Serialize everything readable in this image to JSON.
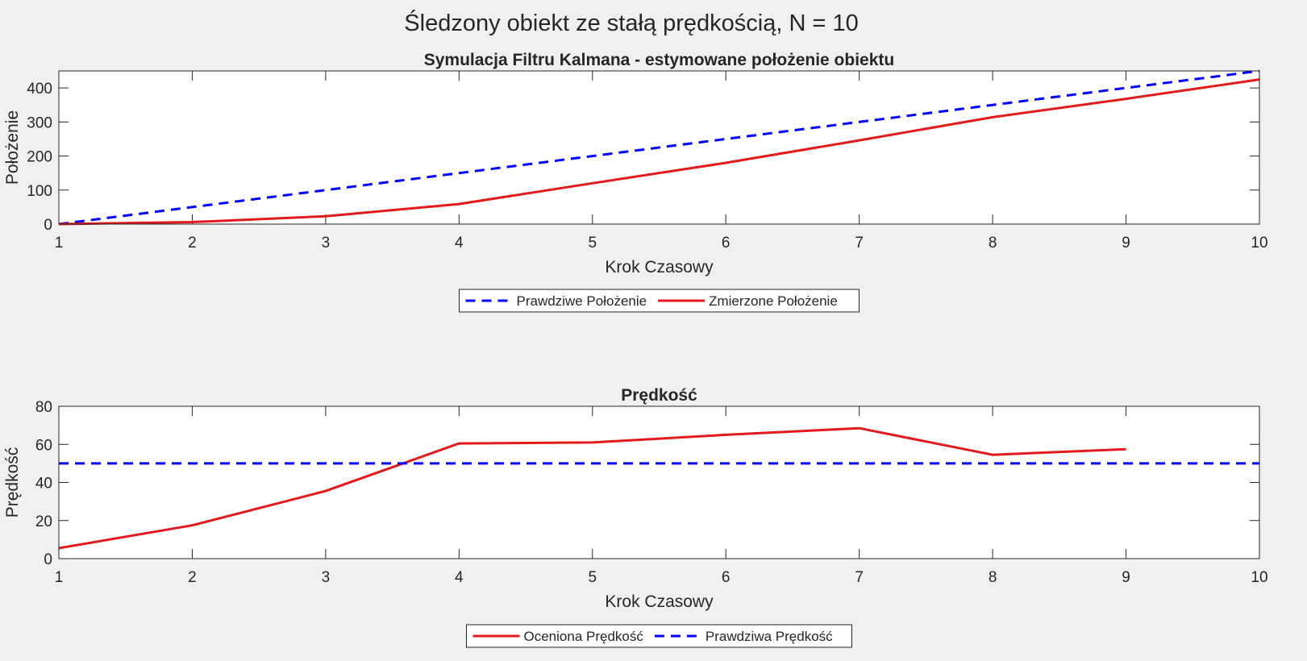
{
  "figure": {
    "suptitle": "Śledzony obiekt ze stałą prędkością, N = 10",
    "background": "#f0f0f0"
  },
  "chart_data": [
    {
      "type": "line",
      "title": "Symulacja Filtru Kalmana - estymowane położenie obiektu",
      "xlabel": "Krok Czasowy",
      "ylabel": "Położenie",
      "xlim": [
        1,
        10
      ],
      "ylim": [
        0,
        450
      ],
      "xticks": [
        1,
        2,
        3,
        4,
        5,
        6,
        7,
        8,
        9,
        10
      ],
      "yticks": [
        0,
        100,
        200,
        300,
        400
      ],
      "grid": false,
      "legend_position": "bottom-center",
      "series": [
        {
          "name": "Prawdziwe Położenie",
          "color": "#0000ff",
          "style": "dashed",
          "x": [
            1,
            2,
            3,
            4,
            5,
            6,
            7,
            8,
            9,
            10
          ],
          "y": [
            0,
            50,
            100,
            150,
            200,
            250,
            300,
            350,
            400,
            450
          ]
        },
        {
          "name": "Zmierzone Położenie",
          "color": "#e31a1c",
          "style": "solid",
          "x": [
            1,
            2,
            3,
            4,
            5,
            6,
            7,
            8,
            9,
            10
          ],
          "y": [
            0,
            6,
            23,
            59,
            120,
            180,
            246,
            314,
            368,
            425
          ]
        }
      ]
    },
    {
      "type": "line",
      "title": "Prędkość",
      "xlabel": "Krok Czasowy",
      "ylabel": "Prędkość",
      "xlim": [
        1,
        10
      ],
      "ylim": [
        0,
        80
      ],
      "xticks": [
        1,
        2,
        3,
        4,
        5,
        6,
        7,
        8,
        9,
        10
      ],
      "yticks": [
        0,
        20,
        40,
        60,
        80
      ],
      "grid": false,
      "legend_position": "bottom-center",
      "series": [
        {
          "name": "Oceniona Prędkość",
          "color": "#e31a1c",
          "style": "solid",
          "x": [
            1,
            2,
            3,
            4,
            5,
            6,
            7,
            8,
            9
          ],
          "y": [
            5.5,
            17.5,
            35.5,
            60.5,
            61,
            65,
            68.5,
            54.5,
            57.5
          ]
        },
        {
          "name": "Prawdziwa Prędkość",
          "color": "#0000ff",
          "style": "dashed",
          "x": [
            1,
            2,
            3,
            4,
            5,
            6,
            7,
            8,
            9,
            10
          ],
          "y": [
            50,
            50,
            50,
            50,
            50,
            50,
            50,
            50,
            50,
            50
          ]
        }
      ]
    }
  ]
}
